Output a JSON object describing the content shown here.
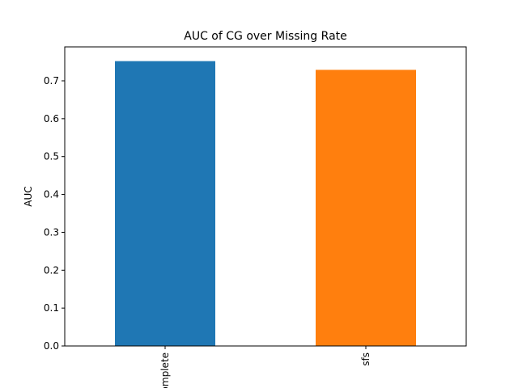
{
  "chart_data": {
    "type": "bar",
    "title": "AUC of CG over Missing Rate",
    "ylabel": "AUC",
    "xlabel": "",
    "categories": [
      "complete",
      "sfs"
    ],
    "values": [
      0.752,
      0.729
    ],
    "colors": [
      "#1f77b4",
      "#ff7f0e"
    ],
    "ylim": [
      0,
      0.7896
    ],
    "yticks": [
      0.0,
      0.1,
      0.2,
      0.3,
      0.4,
      0.5,
      0.6,
      0.7
    ],
    "ytick_labels": [
      "0.0",
      "0.1",
      "0.2",
      "0.3",
      "0.4",
      "0.5",
      "0.6",
      "0.7"
    ],
    "grid": false,
    "legend": "none"
  }
}
